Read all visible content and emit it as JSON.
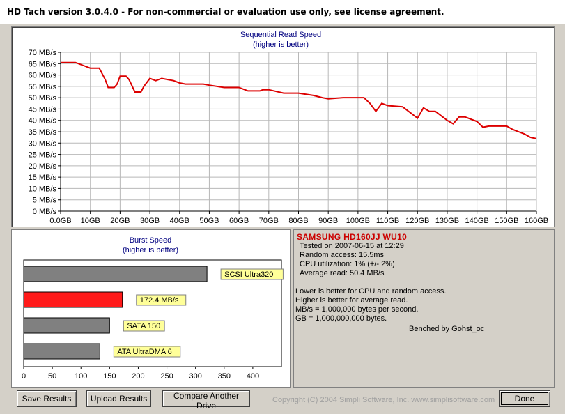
{
  "window": {
    "title": "HD Tach version 3.0.4.0  - For non-commercial or evaluation use only, see license agreement."
  },
  "sequential": {
    "title": "Sequential Read Speed",
    "subtitle": "(higher is better)"
  },
  "burst": {
    "title": "Burst Speed",
    "subtitle": "(higher is better)"
  },
  "drive": {
    "name": "SAMSUNG HD160JJ WU10",
    "tested_on": "Tested on 2007-06-15 at 12:29",
    "random_access": "Random access: 15.5ms",
    "cpu_utilization": "CPU utilization: 1% (+/- 2%)",
    "average_read": "Average read: 50.4 MB/s"
  },
  "notes": {
    "line1": "Lower is better for CPU and random access.",
    "line2": "Higher is better for average read.",
    "line3": "MB/s = 1,000,000 bytes per second.",
    "line4": "GB = 1,000,000,000 bytes.",
    "benched_by": "Benched by Gohst_oc"
  },
  "buttons": {
    "save": "Save Results",
    "upload": "Upload Results",
    "compare": "Compare Another Drive",
    "done": "Done"
  },
  "copyright": "Copyright (C) 2004 Simpli Software, Inc. www.simplisoftware.com",
  "colors": {
    "line": "#dd0000",
    "bar_highlight": "#ff1a1a",
    "bar_default": "#808080",
    "grid": "#b8b8b8",
    "label_bg": "#ffff99",
    "title_text": "#000080"
  },
  "chart_data": [
    {
      "type": "line",
      "title": "Sequential Read Speed",
      "subtitle": "(higher is better)",
      "xlabel": "",
      "ylabel": "",
      "x_unit": "GB",
      "y_unit": "MB/s",
      "xlim": [
        0,
        160
      ],
      "ylim": [
        0,
        70
      ],
      "x_ticks": [
        "0.0GB",
        "10GB",
        "20GB",
        "30GB",
        "40GB",
        "50GB",
        "60GB",
        "70GB",
        "80GB",
        "90GB",
        "100GB",
        "110GB",
        "120GB",
        "130GB",
        "140GB",
        "150GB",
        "160GB"
      ],
      "y_ticks": [
        "0 MB/s",
        "5 MB/s",
        "10 MB/s",
        "15 MB/s",
        "20 MB/s",
        "25 MB/s",
        "30 MB/s",
        "35 MB/s",
        "40 MB/s",
        "45 MB/s",
        "50 MB/s",
        "55 MB/s",
        "60 MB/s",
        "65 MB/s",
        "70 MB/s"
      ],
      "grid": true,
      "series": [
        {
          "x": [
            0,
            5,
            8,
            10,
            13,
            15,
            16,
            18,
            19,
            20,
            22,
            23,
            25,
            27,
            28,
            30,
            32,
            34,
            36,
            38,
            40,
            42,
            45,
            48,
            50,
            55,
            58,
            60,
            63,
            67,
            68,
            70,
            75,
            80,
            85,
            88,
            90,
            95,
            100,
            102,
            104,
            106,
            108,
            110,
            115,
            118,
            120,
            122,
            124,
            126,
            128,
            130,
            132,
            134,
            136,
            138,
            140,
            142,
            144,
            148,
            150,
            152,
            154,
            156,
            158,
            160
          ],
          "y": [
            65.5,
            65.5,
            64,
            63,
            63,
            58,
            54.5,
            54.5,
            56,
            59.5,
            59.5,
            58,
            52.5,
            52.5,
            55,
            58.5,
            57.5,
            58.5,
            58,
            57.5,
            56.5,
            56,
            56,
            56,
            55.5,
            54.5,
            54.5,
            54.5,
            53,
            53,
            53.5,
            53.5,
            52,
            52,
            51,
            50,
            49.5,
            50,
            50,
            50,
            47.5,
            44,
            47.5,
            46.5,
            46,
            43,
            41,
            45.5,
            44,
            44,
            42,
            40,
            38.5,
            41.5,
            41.5,
            40.5,
            39.5,
            37,
            37.5,
            37.5,
            37.5,
            36,
            35,
            34,
            32.5,
            32
          ]
        }
      ]
    },
    {
      "type": "bar",
      "orientation": "horizontal",
      "title": "Burst Speed",
      "subtitle": "(higher is better)",
      "xlim": [
        0,
        450
      ],
      "x_ticks": [
        "0",
        "50",
        "100",
        "150",
        "200",
        "250",
        "300",
        "350",
        "400"
      ],
      "categories": [
        "SCSI Ultra320",
        "172.4 MB/s",
        "SATA 150",
        "ATA UltraDMA 6"
      ],
      "values": [
        320,
        172.4,
        150,
        133
      ],
      "highlight_index": 1
    }
  ]
}
